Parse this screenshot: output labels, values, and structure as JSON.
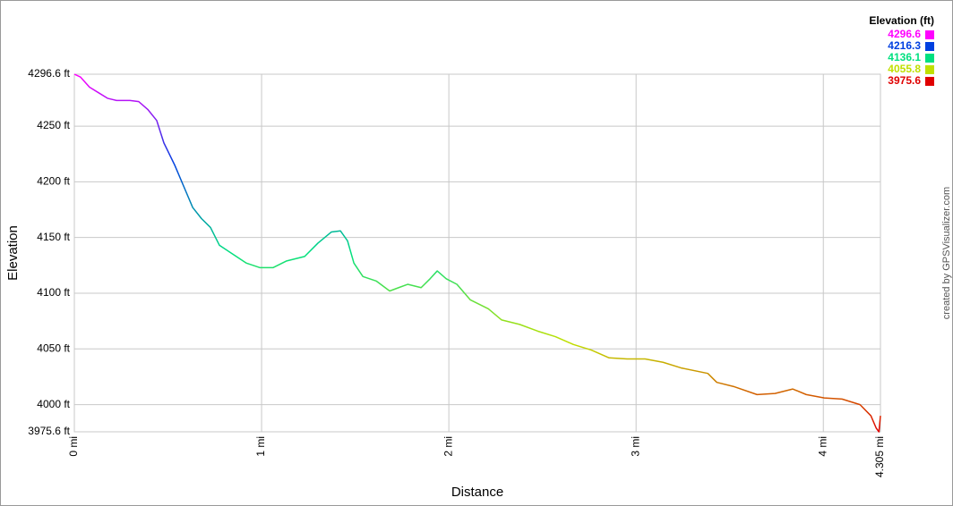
{
  "chart_data": {
    "type": "line",
    "xlabel": "Distance",
    "ylabel": "Elevation",
    "credit": "created by GPSVisualizer.com",
    "grid": true,
    "legend": "top-right",
    "x": [
      0,
      0.033,
      0.081,
      0.129,
      0.177,
      0.225,
      0.297,
      0.344,
      0.392,
      0.44,
      0.478,
      0.536,
      0.584,
      0.632,
      0.679,
      0.727,
      0.775,
      0.847,
      0.919,
      0.99,
      1.062,
      1.134,
      1.23,
      1.301,
      1.373,
      1.421,
      1.459,
      1.493,
      1.541,
      1.612,
      1.684,
      1.732,
      1.78,
      1.852,
      1.9,
      1.938,
      1.986,
      2.043,
      2.115,
      2.211,
      2.282,
      2.378,
      2.474,
      2.569,
      2.665,
      2.761,
      2.856,
      2.952,
      3.048,
      3.144,
      3.239,
      3.383,
      3.431,
      3.526,
      3.646,
      3.742,
      3.837,
      3.909,
      4.005,
      4.1,
      4.196,
      4.254,
      4.282,
      4.297,
      4.305
    ],
    "values": [
      4296.6,
      4294,
      4285,
      4280,
      4275,
      4273,
      4273,
      4272,
      4265,
      4255,
      4235,
      4215,
      4196,
      4177,
      4167,
      4159,
      4143,
      4135,
      4127,
      4123,
      4123,
      4129,
      4133,
      4145,
      4155,
      4156,
      4147,
      4127,
      4115,
      4111,
      4102,
      4105,
      4108,
      4105,
      4113,
      4120,
      4113,
      4108,
      4094,
      4086,
      4076,
      4072,
      4066,
      4061,
      4054,
      4049,
      4042,
      4041,
      4041,
      4038,
      4033,
      4028,
      4020,
      4016,
      4009,
      4010,
      4014,
      4009,
      4006,
      4005,
      4000,
      3990,
      3979,
      3975.6,
      3990
    ],
    "xlim": [
      0,
      4.305
    ],
    "ylim": [
      3975.6,
      4296.6
    ],
    "xticks": [
      {
        "value": 0,
        "label": "0 mi"
      },
      {
        "value": 1,
        "label": "1 mi"
      },
      {
        "value": 2,
        "label": "2 mi"
      },
      {
        "value": 3,
        "label": "3 mi"
      },
      {
        "value": 4,
        "label": "4 mi"
      },
      {
        "value": 4.305,
        "label": "4.305 mi"
      }
    ],
    "yticks": [
      {
        "value": 4296.6,
        "label": "4296.6 ft"
      },
      {
        "value": 4250,
        "label": "4250 ft"
      },
      {
        "value": 4200,
        "label": "4200 ft"
      },
      {
        "value": 4150,
        "label": "4150 ft"
      },
      {
        "value": 4100,
        "label": "4100 ft"
      },
      {
        "value": 4050,
        "label": "4050 ft"
      },
      {
        "value": 4000,
        "label": "4000 ft"
      },
      {
        "value": 3975.6,
        "label": "3975.6 ft"
      }
    ],
    "color_scale": {
      "title": "Elevation (ft)",
      "stops": [
        {
          "value": 4296.6,
          "color": "#ff00ff"
        },
        {
          "value": 4216.3,
          "color": "#0040e0"
        },
        {
          "value": 4136.1,
          "color": "#00e080"
        },
        {
          "value": 4055.8,
          "color": "#c0e000"
        },
        {
          "value": 3975.6,
          "color": "#e00000"
        }
      ]
    }
  }
}
